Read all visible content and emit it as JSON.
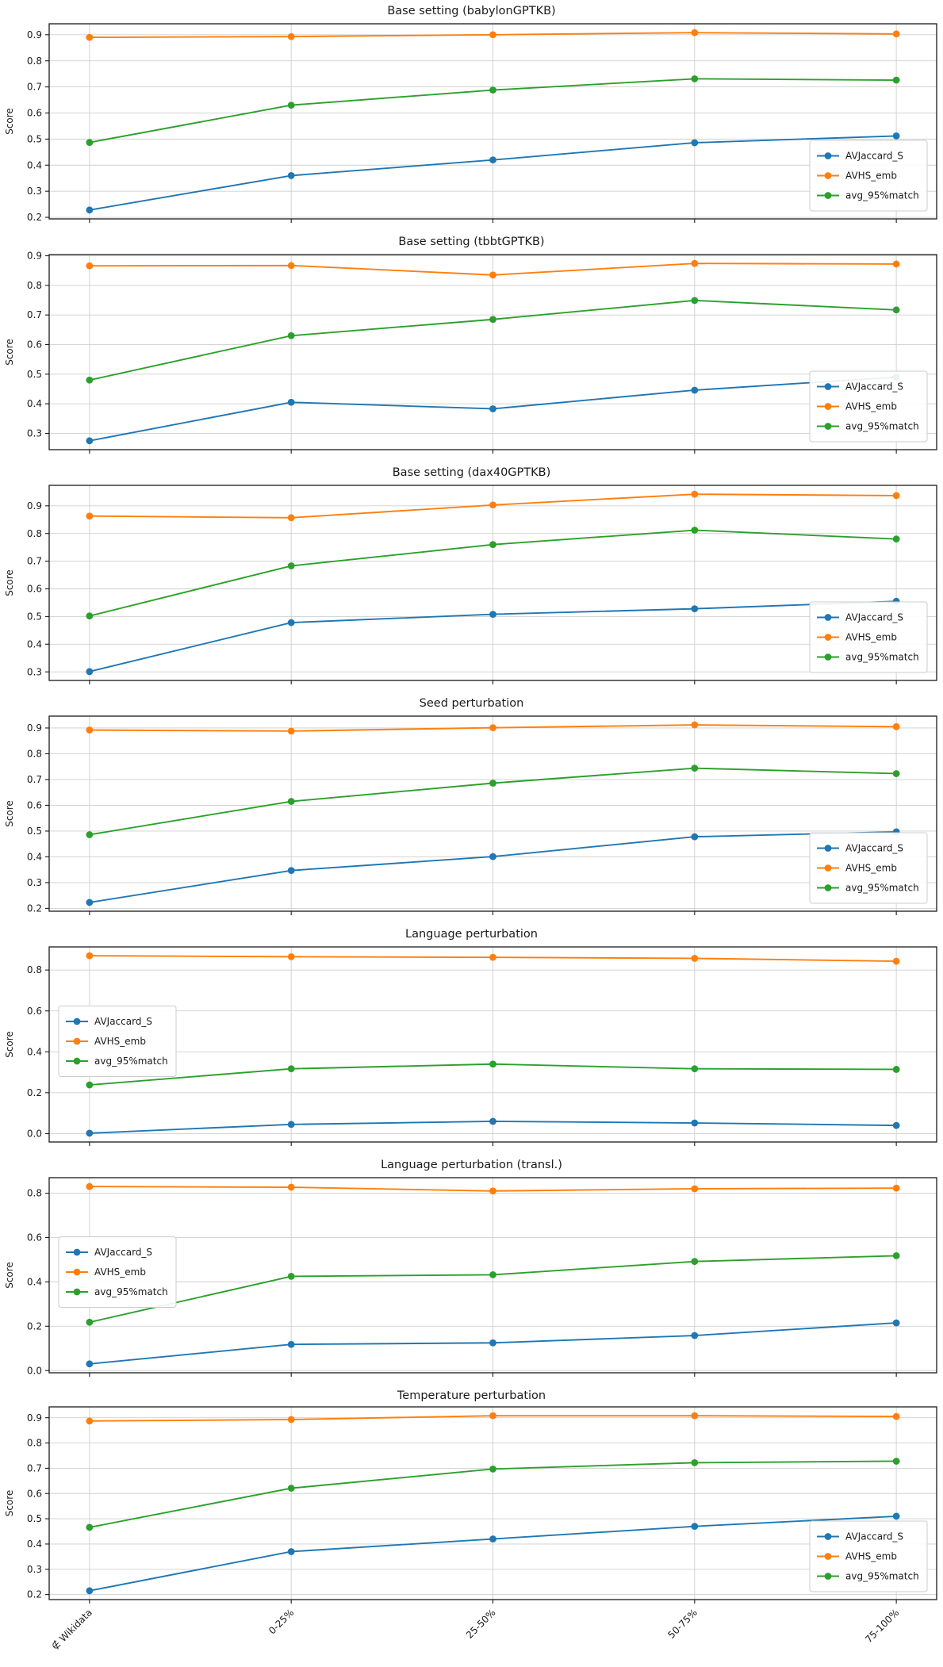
{
  "figure": {
    "ylabel": "Score",
    "colors": {
      "blue": "#1f77b4",
      "orange": "#ff7f0e",
      "green": "#2ca02c"
    },
    "grid_color": "#cfcfcf",
    "spine_color": "#1a1a1a"
  },
  "x_categories": [
    "∉ Wikidata",
    "0-25%",
    "25-50%",
    "50-75%",
    "75-100%"
  ],
  "chart_data": [
    {
      "type": "line",
      "id": "base-babylongptkb",
      "title": "Base setting (babylonGPTKB)",
      "xlabel": "",
      "ylabel": "Score",
      "grid": true,
      "legend_position": "lower-right",
      "ylim": [
        0.194,
        0.942
      ],
      "yticks": [
        0.2,
        0.3,
        0.4,
        0.5,
        0.6,
        0.7,
        0.8,
        0.9
      ],
      "series": [
        {
          "name": "AVJaccard_S",
          "color": "#1f77b4",
          "values": [
            0.228,
            0.36,
            0.42,
            0.486,
            0.512
          ]
        },
        {
          "name": "AVHS_emb",
          "color": "#ff7f0e",
          "values": [
            0.89,
            0.893,
            0.9,
            0.908,
            0.903
          ]
        },
        {
          "name": "avg_95%match",
          "color": "#2ca02c",
          "values": [
            0.487,
            0.63,
            0.688,
            0.731,
            0.726
          ]
        }
      ]
    },
    {
      "type": "line",
      "id": "base-tbbtgptkb",
      "title": "Base setting (tbbtGPTKB)",
      "xlabel": "",
      "ylabel": "Score",
      "grid": true,
      "legend_position": "lower-right",
      "ylim": [
        0.245,
        0.904
      ],
      "yticks": [
        0.3,
        0.4,
        0.5,
        0.6,
        0.7,
        0.8,
        0.9
      ],
      "series": [
        {
          "name": "AVJaccard_S",
          "color": "#1f77b4",
          "values": [
            0.275,
            0.405,
            0.383,
            0.446,
            0.49
          ]
        },
        {
          "name": "AVHS_emb",
          "color": "#ff7f0e",
          "values": [
            0.866,
            0.867,
            0.835,
            0.874,
            0.872
          ]
        },
        {
          "name": "avg_95%match",
          "color": "#2ca02c",
          "values": [
            0.48,
            0.63,
            0.685,
            0.749,
            0.717
          ]
        }
      ]
    },
    {
      "type": "line",
      "id": "base-dax40gptkb",
      "title": "Base setting (dax40GPTKB)",
      "xlabel": "",
      "ylabel": "Score",
      "grid": true,
      "legend_position": "lower-right",
      "ylim": [
        0.269,
        0.974
      ],
      "yticks": [
        0.3,
        0.4,
        0.5,
        0.6,
        0.7,
        0.8,
        0.9
      ],
      "series": [
        {
          "name": "AVJaccard_S",
          "color": "#1f77b4",
          "values": [
            0.301,
            0.478,
            0.508,
            0.528,
            0.555
          ]
        },
        {
          "name": "AVHS_emb",
          "color": "#ff7f0e",
          "values": [
            0.863,
            0.857,
            0.903,
            0.942,
            0.937
          ]
        },
        {
          "name": "avg_95%match",
          "color": "#2ca02c",
          "values": [
            0.502,
            0.683,
            0.76,
            0.812,
            0.78
          ]
        }
      ]
    },
    {
      "type": "line",
      "id": "seed-perturbation",
      "title": "Seed perturbation",
      "xlabel": "",
      "ylabel": "Score",
      "grid": true,
      "legend_position": "lower-right",
      "ylim": [
        0.189,
        0.946
      ],
      "yticks": [
        0.2,
        0.3,
        0.4,
        0.5,
        0.6,
        0.7,
        0.8,
        0.9
      ],
      "series": [
        {
          "name": "AVJaccard_S",
          "color": "#1f77b4",
          "values": [
            0.223,
            0.347,
            0.401,
            0.478,
            0.497
          ]
        },
        {
          "name": "AVHS_emb",
          "color": "#ff7f0e",
          "values": [
            0.892,
            0.888,
            0.901,
            0.912,
            0.905
          ]
        },
        {
          "name": "avg_95%match",
          "color": "#2ca02c",
          "values": [
            0.486,
            0.615,
            0.686,
            0.744,
            0.723
          ]
        }
      ]
    },
    {
      "type": "line",
      "id": "language-perturbation",
      "title": "Language perturbation",
      "xlabel": "",
      "ylabel": "Score",
      "grid": true,
      "legend_position": "center-left",
      "ylim": [
        -0.041,
        0.913
      ],
      "yticks": [
        0.0,
        0.2,
        0.4,
        0.6,
        0.8
      ],
      "series": [
        {
          "name": "AVJaccard_S",
          "color": "#1f77b4",
          "values": [
            0.002,
            0.045,
            0.06,
            0.052,
            0.04
          ]
        },
        {
          "name": "AVHS_emb",
          "color": "#ff7f0e",
          "values": [
            0.87,
            0.865,
            0.862,
            0.857,
            0.843
          ]
        },
        {
          "name": "avg_95%match",
          "color": "#2ca02c",
          "values": [
            0.238,
            0.317,
            0.34,
            0.317,
            0.314
          ]
        }
      ]
    },
    {
      "type": "line",
      "id": "language-perturbation-transl",
      "title": "Language perturbation (transl.)",
      "xlabel": "",
      "ylabel": "Score",
      "grid": true,
      "legend_position": "center-left",
      "ylim": [
        -0.01,
        0.87
      ],
      "yticks": [
        0.0,
        0.2,
        0.4,
        0.6,
        0.8
      ],
      "series": [
        {
          "name": "AVJaccard_S",
          "color": "#1f77b4",
          "values": [
            0.03,
            0.118,
            0.125,
            0.158,
            0.215
          ]
        },
        {
          "name": "AVHS_emb",
          "color": "#ff7f0e",
          "values": [
            0.83,
            0.827,
            0.81,
            0.82,
            0.823
          ]
        },
        {
          "name": "avg_95%match",
          "color": "#2ca02c",
          "values": [
            0.218,
            0.425,
            0.432,
            0.492,
            0.518
          ]
        }
      ]
    },
    {
      "type": "line",
      "id": "temperature-perturbation",
      "title": "Temperature perturbation",
      "xlabel": "",
      "ylabel": "Score",
      "grid": true,
      "legend_position": "lower-right",
      "ylim": [
        0.18,
        0.943
      ],
      "yticks": [
        0.2,
        0.3,
        0.4,
        0.5,
        0.6,
        0.7,
        0.8,
        0.9
      ],
      "series": [
        {
          "name": "AVJaccard_S",
          "color": "#1f77b4",
          "values": [
            0.215,
            0.37,
            0.42,
            0.47,
            0.51
          ]
        },
        {
          "name": "AVHS_emb",
          "color": "#ff7f0e",
          "values": [
            0.887,
            0.893,
            0.908,
            0.908,
            0.905
          ]
        },
        {
          "name": "avg_95%match",
          "color": "#2ca02c",
          "values": [
            0.466,
            0.621,
            0.697,
            0.722,
            0.728
          ]
        }
      ]
    }
  ]
}
